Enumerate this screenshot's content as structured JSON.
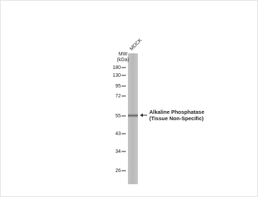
{
  "sample": "MDCK",
  "mw_label": [
    "MW",
    "(kDa)"
  ],
  "markers": [
    "180",
    "130",
    "95",
    "72",
    "55",
    "43",
    "34",
    "26"
  ],
  "band_label": [
    "Alkaline Phosphatase",
    "(Tissue Non-Specific)"
  ]
}
